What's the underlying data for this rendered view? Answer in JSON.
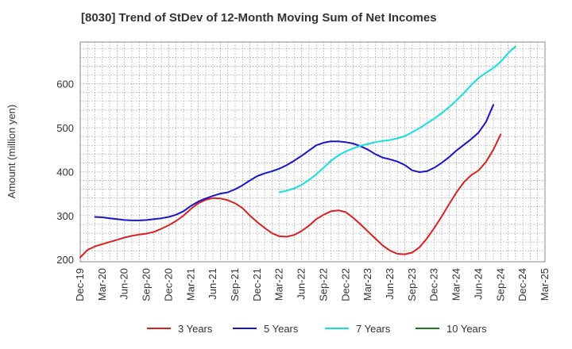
{
  "chart_data": {
    "type": "line",
    "title": "[8030]  Trend of StDev of 12-Month Moving Sum of Net Incomes",
    "ylabel": "Amount (million yen)",
    "xlabel": "",
    "ylim": [
      195,
      695
    ],
    "yticks": [
      200,
      300,
      400,
      500,
      600
    ],
    "xticks": [
      "Dec-19",
      "Mar-20",
      "Jun-20",
      "Sep-20",
      "Dec-20",
      "Mar-21",
      "Jun-21",
      "Sep-21",
      "Dec-21",
      "Mar-22",
      "Jun-22",
      "Sep-22",
      "Dec-22",
      "Mar-23",
      "Jun-23",
      "Sep-23",
      "Dec-23",
      "Mar-24",
      "Jun-24",
      "Sep-24",
      "Dec-24",
      "Mar-25"
    ],
    "grid": true,
    "legend_position": "bottom",
    "series": [
      {
        "name": "3 Years",
        "color": "#dd1f1f",
        "start_month": 0,
        "values": [
          205,
          222,
          230,
          235,
          240,
          245,
          250,
          254,
          257,
          259,
          263,
          270,
          278,
          288,
          300,
          315,
          328,
          336,
          340,
          339,
          335,
          328,
          317,
          300,
          285,
          272,
          260,
          253,
          252,
          256,
          265,
          277,
          292,
          302,
          310,
          312,
          308,
          295,
          280,
          264,
          248,
          232,
          220,
          213,
          212,
          216,
          228,
          248,
          272,
          298,
          326,
          353,
          376,
          392,
          403,
          422,
          450,
          485
        ]
      },
      {
        "name": "5 Years",
        "color": "#1515cc",
        "start_month": 2,
        "values": [
          297,
          296,
          294,
          292,
          290,
          289,
          289,
          290,
          292,
          294,
          297,
          302,
          310,
          322,
          332,
          339,
          345,
          350,
          353,
          360,
          369,
          380,
          390,
          396,
          401,
          407,
          415,
          425,
          436,
          448,
          460,
          466,
          469,
          469,
          467,
          464,
          458,
          450,
          440,
          432,
          428,
          423,
          415,
          403,
          399,
          401,
          409,
          420,
          433,
          448,
          461,
          474,
          489,
          513,
          552
        ]
      },
      {
        "name": "7 Years",
        "color": "#12e0e0",
        "start_month": 27,
        "values": [
          353,
          357,
          362,
          370,
          381,
          394,
          409,
          425,
          437,
          446,
          453,
          459,
          463,
          467,
          470,
          472,
          476,
          481,
          490,
          499,
          510,
          521,
          533,
          547,
          562,
          579,
          597,
          613,
          625,
          636,
          650,
          670,
          685
        ]
      },
      {
        "name": "10 Years",
        "color": "#1a7a1a",
        "start_month": 0,
        "values": []
      }
    ]
  }
}
